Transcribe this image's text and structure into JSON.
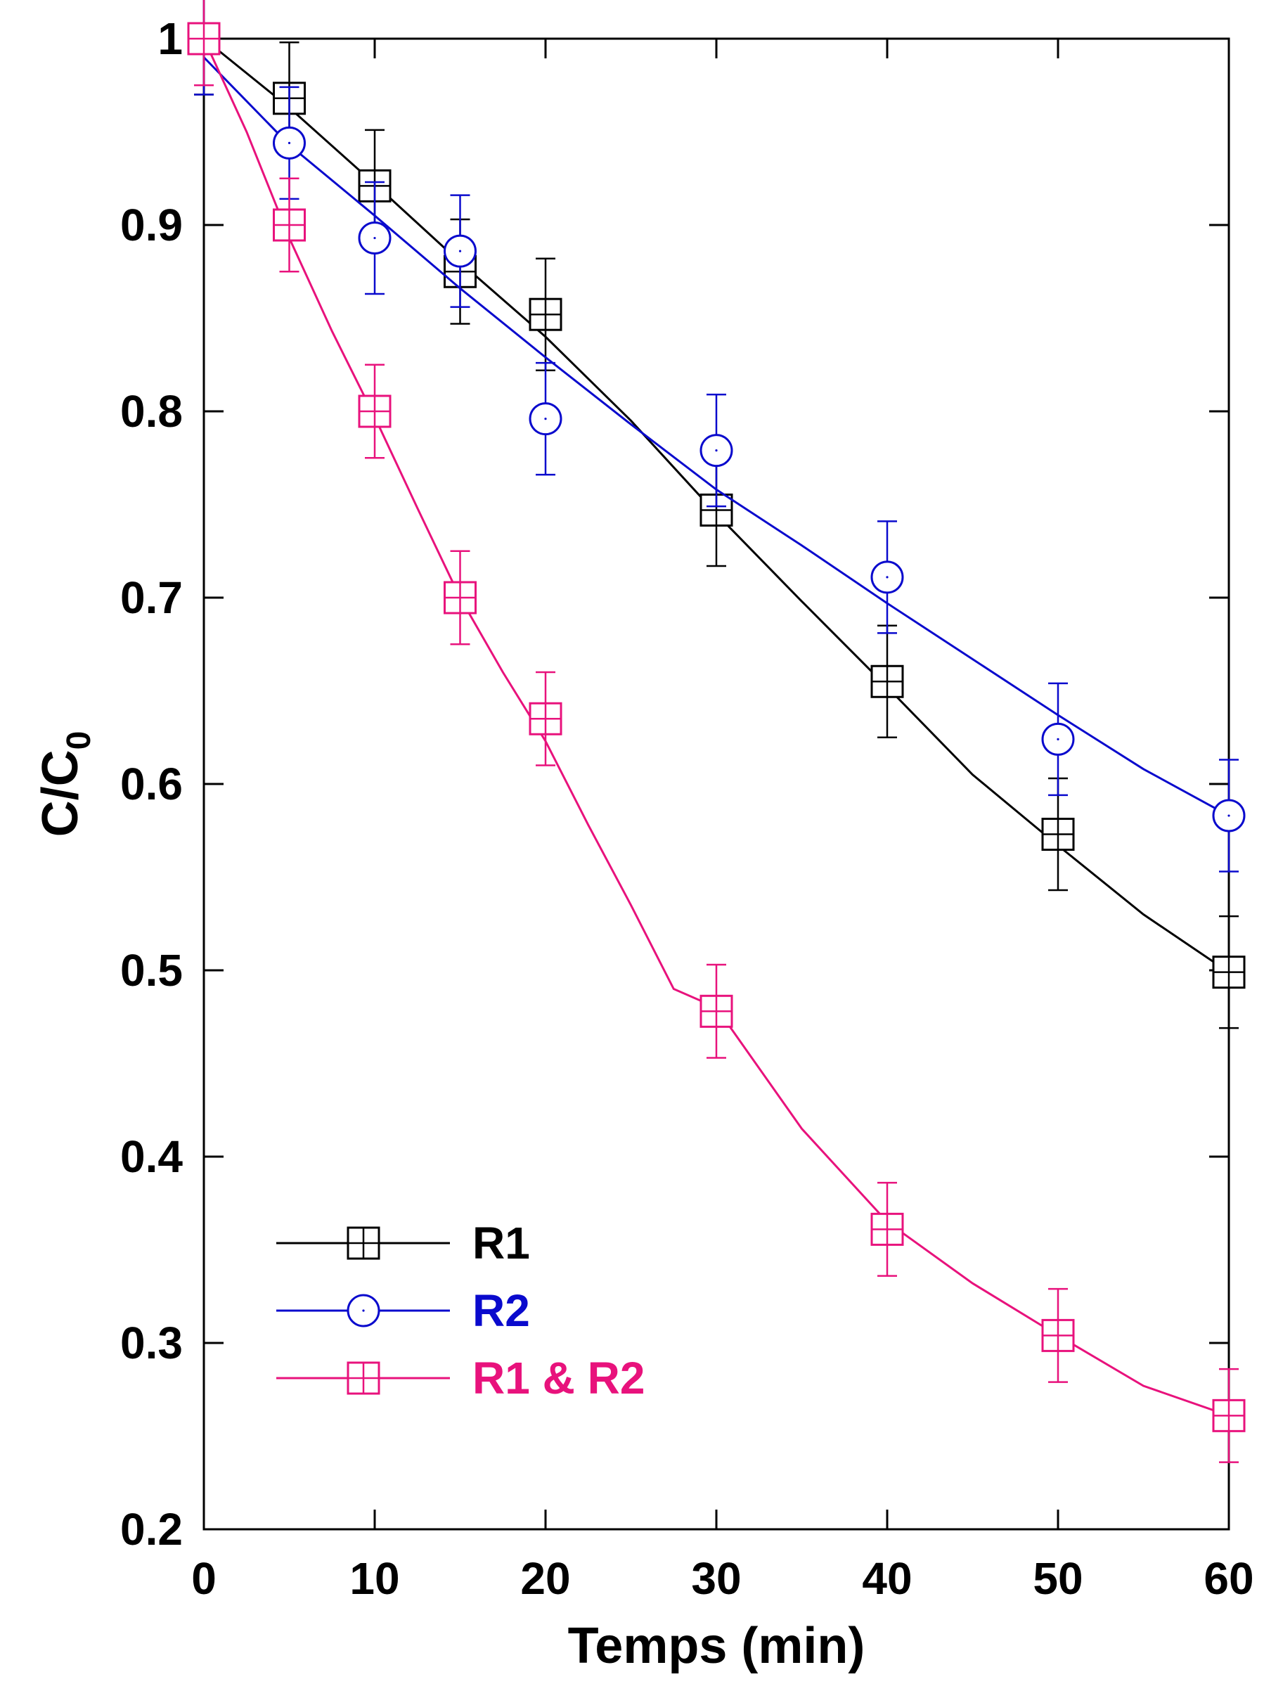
{
  "chart_data": {
    "type": "line",
    "title": "",
    "xlabel": "Temps (min)",
    "ylabel_main": "C/C",
    "ylabel_sub": "0",
    "xlim": [
      0,
      60
    ],
    "ylim": [
      0.2,
      1.0
    ],
    "xticks": [
      0,
      10,
      20,
      30,
      40,
      50,
      60
    ],
    "xtick_labels": [
      "0",
      "10",
      "20",
      "30",
      "40",
      "50",
      "60"
    ],
    "yticks": [
      0.2,
      0.3,
      0.4,
      0.5,
      0.6,
      0.7,
      0.8,
      0.9,
      1.0
    ],
    "ytick_labels": [
      "0.2",
      "0.3",
      "0.4",
      "0.5",
      "0.6",
      "0.7",
      "0.8",
      "0.9",
      "1"
    ],
    "grid": false,
    "legend_position": "bottom-left",
    "series": [
      {
        "name": "R1",
        "color": "#000000",
        "marker": "square-cross",
        "x": [
          0,
          5,
          10,
          15,
          20,
          30,
          40,
          50,
          60
        ],
        "y": [
          1.0,
          0.968,
          0.921,
          0.875,
          0.852,
          0.747,
          0.655,
          0.573,
          0.499
        ],
        "error": [
          0.03,
          0.03,
          0.03,
          0.028,
          0.03,
          0.03,
          0.03,
          0.03,
          0.03
        ],
        "fit_x": [
          0,
          5,
          10,
          15,
          20,
          25,
          30,
          35,
          40,
          45,
          50,
          55,
          60
        ],
        "fit_y": [
          1.0,
          0.963,
          0.922,
          0.88,
          0.84,
          0.795,
          0.745,
          0.698,
          0.652,
          0.605,
          0.567,
          0.53,
          0.499
        ]
      },
      {
        "name": "R2",
        "color": "#0a0acd",
        "marker": "circle",
        "x": [
          0,
          5,
          10,
          15,
          20,
          30,
          40,
          50,
          60
        ],
        "y": [
          1.0,
          0.944,
          0.893,
          0.886,
          0.796,
          0.779,
          0.711,
          0.624,
          0.583
        ],
        "error": [
          0.03,
          0.03,
          0.03,
          0.03,
          0.03,
          0.03,
          0.03,
          0.03,
          0.03
        ],
        "fit_x": [
          0,
          5,
          10,
          15,
          20,
          25,
          30,
          35,
          40,
          45,
          50,
          55,
          60
        ],
        "fit_y": [
          0.99,
          0.943,
          0.905,
          0.866,
          0.829,
          0.793,
          0.758,
          0.728,
          0.697,
          0.667,
          0.637,
          0.608,
          0.583
        ]
      },
      {
        "name": "R1 & R2",
        "color": "#e8127c",
        "marker": "square-cross",
        "x": [
          0,
          5,
          10,
          15,
          20,
          30,
          40,
          50,
          60
        ],
        "y": [
          1.0,
          0.9,
          0.8,
          0.7,
          0.635,
          0.478,
          0.361,
          0.304,
          0.261
        ],
        "error": [
          0.025,
          0.025,
          0.025,
          0.025,
          0.025,
          0.025,
          0.025,
          0.025,
          0.025
        ],
        "fit_x": [
          0,
          2.5,
          5,
          7.5,
          10,
          12.5,
          15,
          17.5,
          20,
          22.5,
          25,
          27.5,
          30,
          35,
          40,
          45,
          50,
          55,
          60
        ],
        "fit_y": [
          1.0,
          0.95,
          0.893,
          0.843,
          0.797,
          0.748,
          0.7,
          0.66,
          0.623,
          0.578,
          0.535,
          0.49,
          0.48,
          0.415,
          0.365,
          0.332,
          0.304,
          0.277,
          0.261
        ]
      }
    ]
  }
}
